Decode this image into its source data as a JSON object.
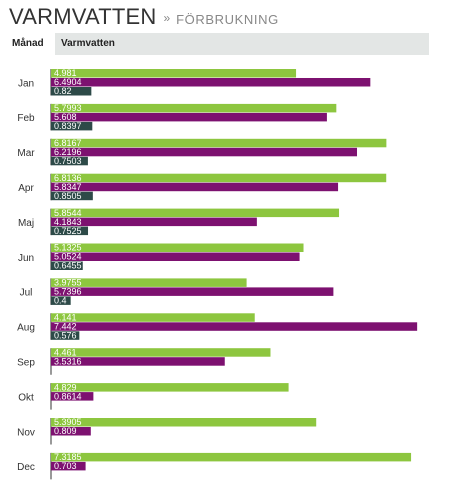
{
  "header": {
    "title": "VARMVATTEN",
    "separator": "»",
    "subtitle": "FÖRBRUKNING"
  },
  "table": {
    "col_month": "Månad",
    "col_series": "Varmvatten"
  },
  "colors": {
    "green": "#8dc63f",
    "purple": "#7d1170",
    "dark": "#2d4a48"
  },
  "chart_data": {
    "type": "bar",
    "orientation": "horizontal",
    "categories": [
      "Jan",
      "Feb",
      "Mar",
      "Apr",
      "Maj",
      "Jun",
      "Jul",
      "Aug",
      "Sep",
      "Okt",
      "Nov",
      "Dec"
    ],
    "series": [
      {
        "values": [
          4.981,
          5.7993,
          6.8167,
          6.8136,
          5.8544,
          5.1325,
          3.9755,
          4.141,
          4.461,
          4.829,
          5.3905,
          7.3185
        ],
        "labels": [
          "4.981",
          "5.7993",
          "6.8167",
          "6.8136",
          "5.8544",
          "5.1325",
          "3.9755",
          "4.141",
          "4.461",
          "4.829",
          "5.3905",
          "7.3185"
        ]
      },
      {
        "values": [
          6.4904,
          5.608,
          6.2196,
          5.8347,
          4.1843,
          5.0524,
          5.7396,
          7.442,
          3.5316,
          0.8614,
          0.809,
          0.703
        ],
        "labels": [
          "6.4904",
          "5.608",
          "6.2196",
          "5.8347",
          "4.1843",
          "5.0524",
          "5.7396",
          "7.442",
          "3.5316",
          "0.8614",
          "0.809",
          "0.703"
        ]
      },
      {
        "values": [
          0.82,
          0.8397,
          0.7503,
          0.8505,
          0.7525,
          0.6455,
          0.4,
          0.576,
          0,
          0,
          0,
          0
        ],
        "labels": [
          "0.82",
          "0.8397",
          "0.7503",
          "0.8505",
          "0.7525",
          "0.6455",
          "0.4",
          "0.576",
          "",
          "",
          "",
          ""
        ]
      }
    ],
    "xlim": [
      0,
      7.5
    ],
    "grid": false,
    "legend": "none"
  }
}
